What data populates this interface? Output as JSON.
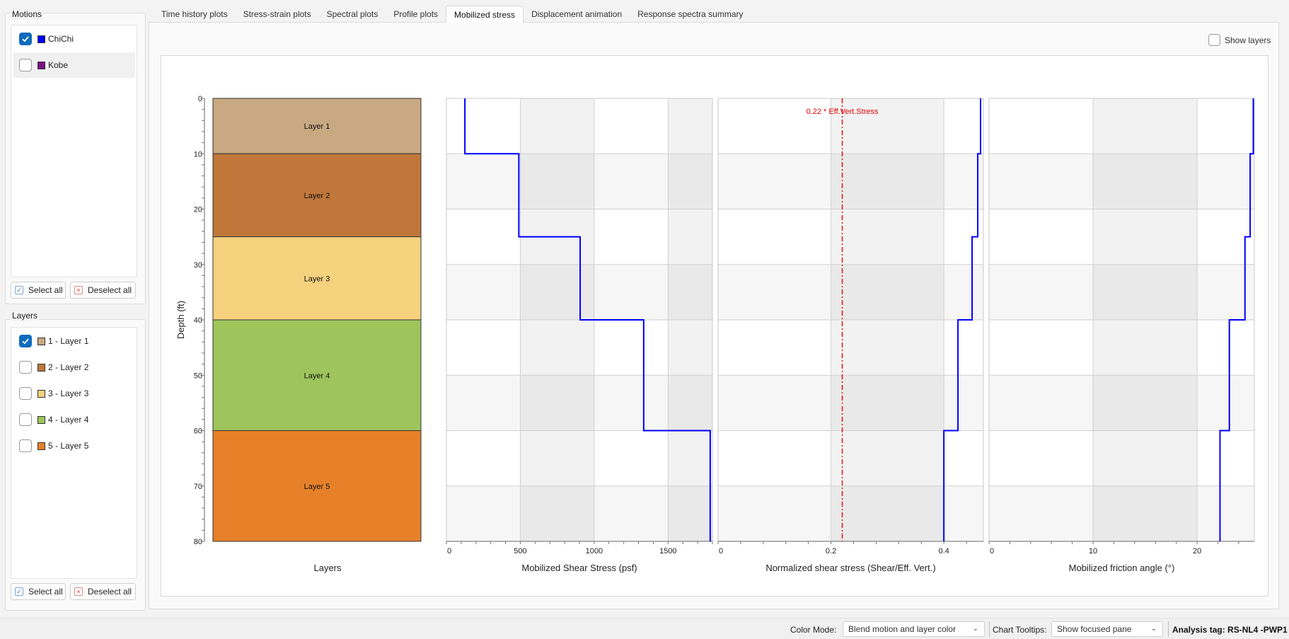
{
  "motions": {
    "title": "Motions",
    "items": [
      {
        "label": "ChiChi",
        "color": "#0000ff",
        "checked": true
      },
      {
        "label": "Kobe",
        "color": "#7a1087",
        "checked": false
      }
    ],
    "select_all": "Select all",
    "deselect_all": "Deselect all"
  },
  "layers_panel": {
    "title": "Layers",
    "items": [
      {
        "label": "1 - Layer 1",
        "color": "#c8a982",
        "checked": true
      },
      {
        "label": "2 - Layer 2",
        "color": "#c07739",
        "checked": false
      },
      {
        "label": "3 - Layer 3",
        "color": "#f6d27e",
        "checked": false
      },
      {
        "label": "4 - Layer 4",
        "color": "#9dc55c",
        "checked": false
      },
      {
        "label": "5 - Layer 5",
        "color": "#e6812a",
        "checked": false
      }
    ],
    "select_all": "Select all",
    "deselect_all": "Deselect all"
  },
  "tabs": [
    {
      "label": "Time history plots",
      "active": false
    },
    {
      "label": "Stress-strain plots",
      "active": false
    },
    {
      "label": "Spectral plots",
      "active": false
    },
    {
      "label": "Profile plots",
      "active": false
    },
    {
      "label": "Mobilized stress",
      "active": true
    },
    {
      "label": "Displacement animation",
      "active": false
    },
    {
      "label": "Response spectra summary",
      "active": false
    }
  ],
  "show_layers": {
    "label": "Show layers",
    "checked": false
  },
  "chart_data": {
    "type": "line",
    "depth_axis": {
      "label": "Depth (ft)",
      "range": [
        0,
        80
      ],
      "ticks": [
        0,
        10,
        20,
        30,
        40,
        50,
        60,
        70,
        80
      ],
      "inverted": true
    },
    "layers_column": {
      "xlabel": "Layers",
      "layers": [
        {
          "name": "Layer 1",
          "top": 0,
          "bottom": 10,
          "color": "#c8a982"
        },
        {
          "name": "Layer 2",
          "top": 10,
          "bottom": 25,
          "color": "#c07739"
        },
        {
          "name": "Layer 3",
          "top": 25,
          "bottom": 40,
          "color": "#f6d27e"
        },
        {
          "name": "Layer 4",
          "top": 40,
          "bottom": 60,
          "color": "#9dc55c"
        },
        {
          "name": "Layer 5",
          "top": 60,
          "bottom": 80,
          "color": "#e6812a"
        }
      ]
    },
    "panels": [
      {
        "xlabel": "Mobilized Shear Stress (psf)",
        "xlim": [
          0,
          1800
        ],
        "xticks": [
          0,
          500,
          1000,
          1500
        ],
        "series": [
          {
            "color": "#0000ff",
            "steps": [
              [
                0,
                10,
                125
              ],
              [
                10,
                25,
                490
              ],
              [
                25,
                40,
                905
              ],
              [
                40,
                60,
                1335
              ],
              [
                60,
                80,
                1785
              ]
            ]
          }
        ]
      },
      {
        "xlabel": "Normalized shear stress (Shear/Eff. Vert.)",
        "xlim": [
          0,
          0.47
        ],
        "xticks": [
          0,
          0.2,
          0.4
        ],
        "series": [
          {
            "color": "#0000ff",
            "steps": [
              [
                0,
                10,
                0.465
              ],
              [
                10,
                25,
                0.46
              ],
              [
                25,
                40,
                0.45
              ],
              [
                40,
                60,
                0.425
              ],
              [
                60,
                80,
                0.4
              ]
            ]
          }
        ],
        "reference_line": {
          "value": 0.22,
          "label": "0.22 * Eff.Vert.Stress",
          "color": "#e60000"
        }
      },
      {
        "xlabel": "Mobilized friction angle (°)",
        "xlim": [
          0,
          25.5
        ],
        "xticks": [
          0,
          10,
          20
        ],
        "series": [
          {
            "color": "#0000ff",
            "steps": [
              [
                0,
                10,
                25.4
              ],
              [
                10,
                25,
                25.1
              ],
              [
                25,
                40,
                24.6
              ],
              [
                40,
                60,
                23.1
              ],
              [
                60,
                80,
                22.2
              ]
            ]
          }
        ]
      }
    ]
  },
  "status_bar": {
    "color_mode_label": "Color Mode:",
    "color_mode_value": "Blend motion and layer color",
    "tooltips_label": "Chart Tooltips:",
    "tooltips_value": "Show focused pane",
    "analysis_tag": "Analysis tag: RS-NL4 -PWP1"
  }
}
